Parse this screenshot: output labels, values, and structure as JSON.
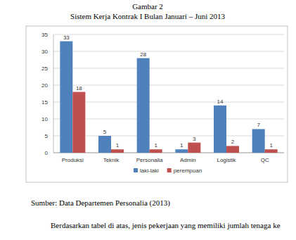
{
  "figure_label": "Gambar 2",
  "source": "Sumber: Data Departemen Personalia (2013)",
  "body_text": "Berdasarkan tabel di atas, jenis pekerjaan yang memiliki jumlah tenaga ke",
  "chart_data": {
    "type": "bar",
    "title": "Sistem Kerja Kontrak I Bulan Januari – Juni 2013",
    "categories": [
      "Produksi",
      "Teknik",
      "Personalia",
      "Admin",
      "Logistik",
      "QC"
    ],
    "series": [
      {
        "name": "laki-laki",
        "color": "#4f81bd",
        "values": [
          33,
          5,
          28,
          1,
          14,
          7
        ]
      },
      {
        "name": "perempuan",
        "color": "#c0504d",
        "values": [
          18,
          1,
          1,
          3,
          2,
          1
        ]
      }
    ],
    "ylim": [
      0,
      35
    ],
    "yticks": [
      0,
      5,
      10,
      15,
      20,
      25,
      30,
      35
    ],
    "grid": true,
    "data_labels": true,
    "legend": "bottom"
  }
}
